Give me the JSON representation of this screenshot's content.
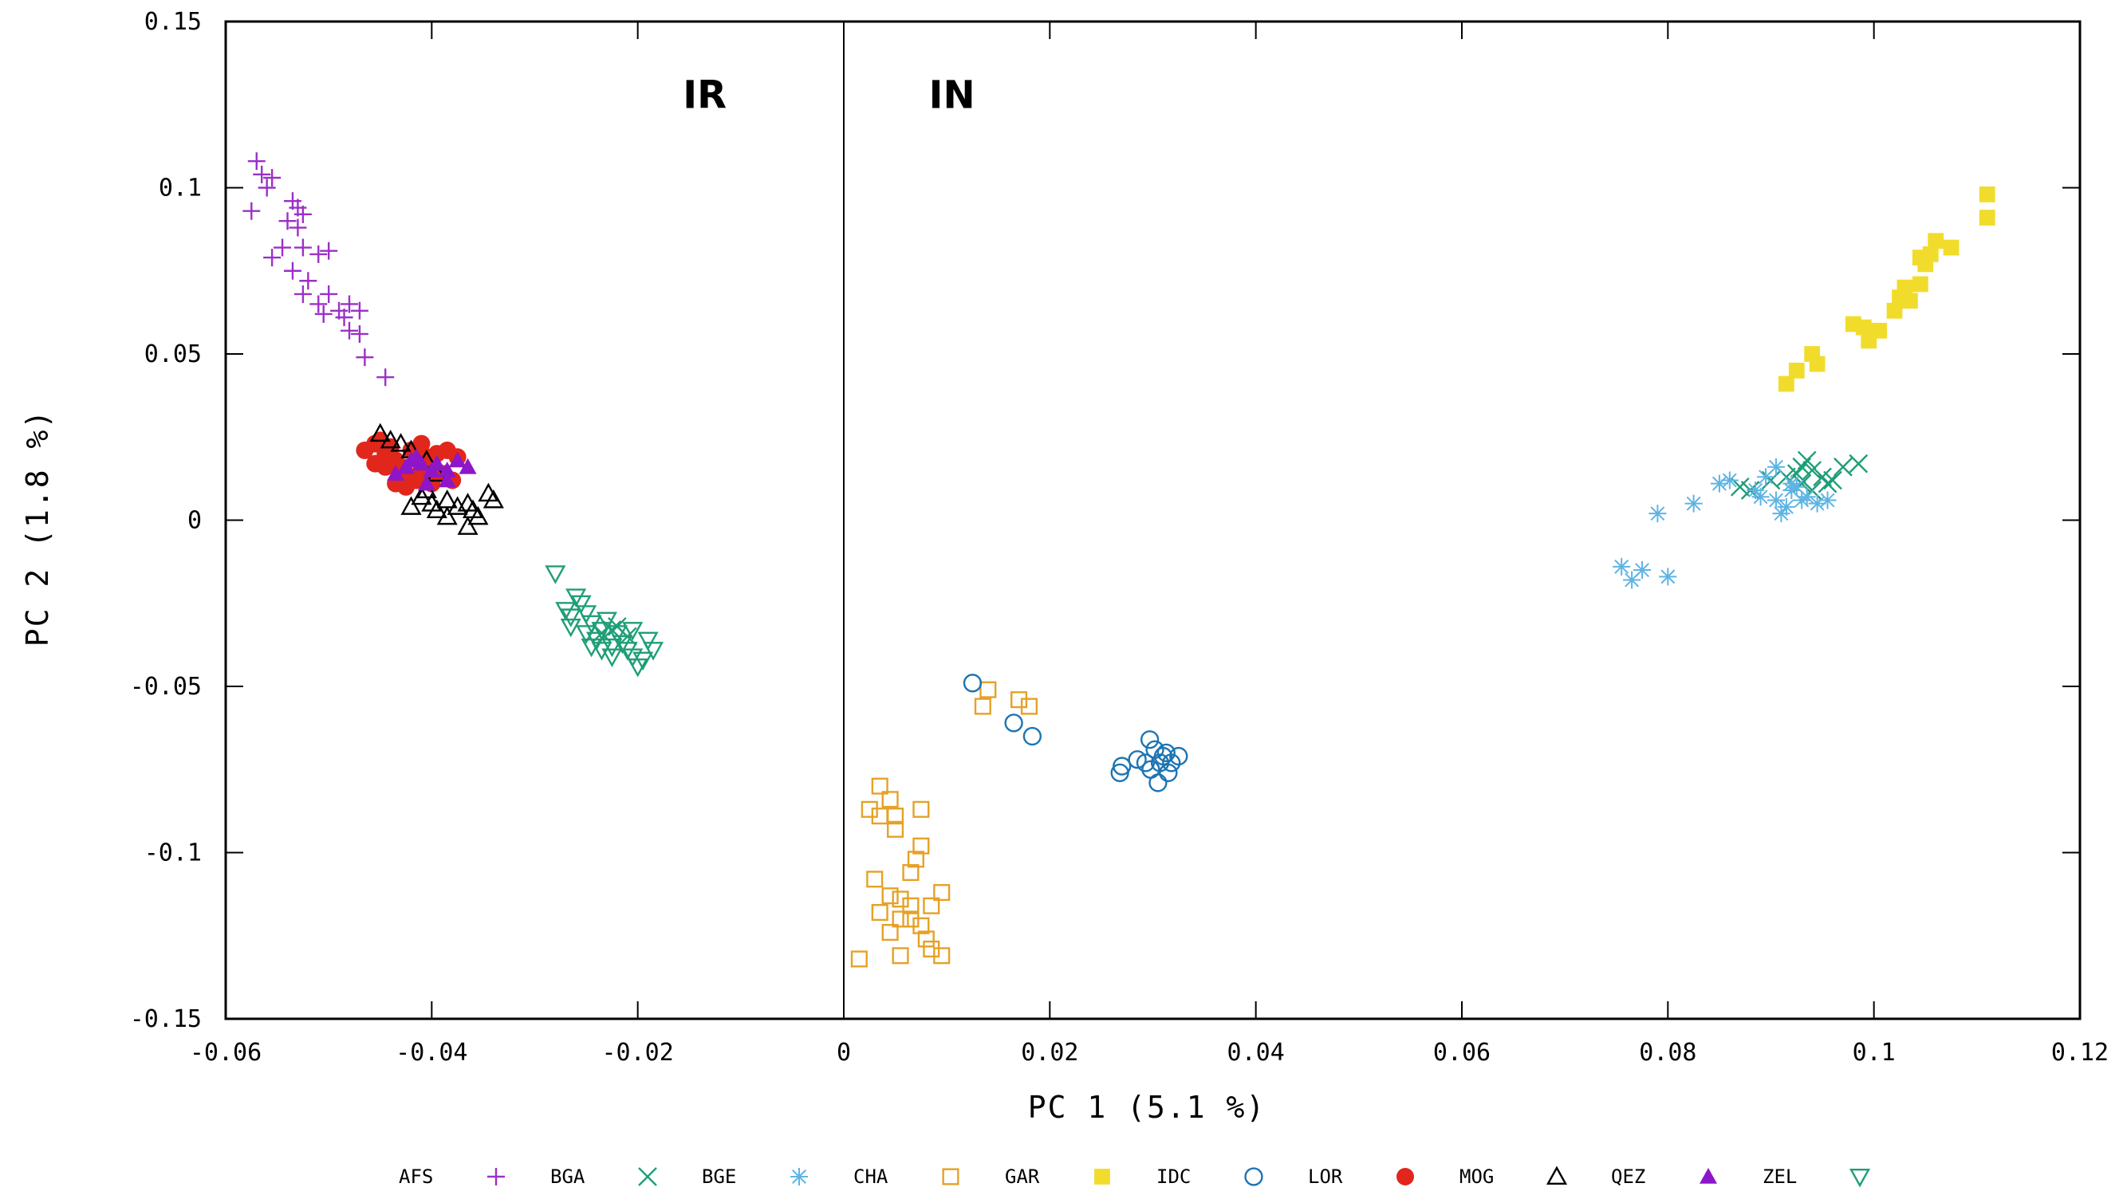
{
  "chart_data": {
    "type": "scatter",
    "xlabel": "PC 1 (5.1 %)",
    "ylabel": "PC 2 (1.8 %)",
    "xlim": [
      -0.06,
      0.12
    ],
    "ylim": [
      -0.15,
      0.15
    ],
    "xticks": [
      -0.06,
      -0.04,
      -0.02,
      0,
      0.02,
      0.04,
      0.06,
      0.08,
      0.1,
      0.12
    ],
    "xtick_labels": [
      "-0.06",
      "-0.04",
      "-0.02",
      "0",
      "0.02",
      "0.04",
      "0.06",
      "0.08",
      "0.1",
      "0.12"
    ],
    "yticks": [
      0.15,
      0.1,
      0.05,
      0,
      -0.05,
      -0.1,
      -0.15
    ],
    "ytick_labels": [
      "0.15",
      "0.1",
      "0.05",
      "0",
      "-0.05",
      "-0.1",
      "-0.15"
    ],
    "grid": false,
    "legend_position": "bottom",
    "annotations": [
      {
        "text": "IR",
        "x": -0.0135,
        "y": 0.124
      },
      {
        "text": "IN",
        "x": 0.0105,
        "y": 0.124
      }
    ],
    "reference_lines": [
      {
        "orientation": "vertical",
        "x": 0
      }
    ],
    "series": [
      {
        "name": "AFS",
        "marker": "plus",
        "color": "#9b30c8",
        "points": [
          [
            -0.057,
            0.108
          ],
          [
            -0.0565,
            0.104
          ],
          [
            -0.056,
            0.1
          ],
          [
            -0.0555,
            0.103
          ],
          [
            -0.0575,
            0.093
          ],
          [
            -0.0535,
            0.096
          ],
          [
            -0.053,
            0.094
          ],
          [
            -0.0525,
            0.092
          ],
          [
            -0.054,
            0.09
          ],
          [
            -0.053,
            0.088
          ],
          [
            -0.0545,
            0.082
          ],
          [
            -0.0525,
            0.082
          ],
          [
            -0.051,
            0.08
          ],
          [
            -0.05,
            0.081
          ],
          [
            -0.0555,
            0.079
          ],
          [
            -0.0535,
            0.075
          ],
          [
            -0.052,
            0.072
          ],
          [
            -0.05,
            0.068
          ],
          [
            -0.0525,
            0.068
          ],
          [
            -0.051,
            0.065
          ],
          [
            -0.0505,
            0.062
          ],
          [
            -0.049,
            0.063
          ],
          [
            -0.048,
            0.065
          ],
          [
            -0.047,
            0.063
          ],
          [
            -0.0485,
            0.061
          ],
          [
            -0.048,
            0.057
          ],
          [
            -0.047,
            0.056
          ],
          [
            -0.0465,
            0.049
          ],
          [
            -0.0445,
            0.043
          ]
        ]
      },
      {
        "name": "BGA",
        "marker": "x",
        "color": "#1f9e78",
        "points": [
          [
            -0.0235,
            -0.034
          ],
          [
            -0.0225,
            -0.033
          ],
          [
            -0.022,
            -0.032
          ],
          [
            -0.021,
            -0.035
          ],
          [
            0.087,
            0.01
          ],
          [
            0.088,
            0.009
          ],
          [
            0.09,
            0.012
          ],
          [
            0.0915,
            0.013
          ],
          [
            0.093,
            0.011
          ],
          [
            0.094,
            0.015
          ],
          [
            0.0935,
            0.018
          ],
          [
            0.095,
            0.013
          ],
          [
            0.096,
            0.012
          ],
          [
            0.097,
            0.016
          ],
          [
            0.0985,
            0.017
          ],
          [
            0.0925,
            0.014
          ],
          [
            0.094,
            0.009
          ],
          [
            0.0955,
            0.011
          ],
          [
            0.093,
            0.016
          ]
        ]
      },
      {
        "name": "BGE",
        "marker": "asterisk",
        "color": "#5db4e4",
        "points": [
          [
            0.0755,
            -0.014
          ],
          [
            0.0765,
            -0.018
          ],
          [
            0.0775,
            -0.015
          ],
          [
            0.08,
            -0.017
          ],
          [
            0.079,
            0.002
          ],
          [
            0.0825,
            0.005
          ],
          [
            0.085,
            0.011
          ],
          [
            0.086,
            0.012
          ],
          [
            0.0885,
            0.009
          ],
          [
            0.089,
            0.007
          ],
          [
            0.0905,
            0.006
          ],
          [
            0.0915,
            0.004
          ],
          [
            0.0905,
            0.016
          ],
          [
            0.092,
            0.009
          ],
          [
            0.0935,
            0.007
          ],
          [
            0.0945,
            0.005
          ],
          [
            0.0955,
            0.006
          ],
          [
            0.091,
            0.002
          ],
          [
            0.0895,
            0.013
          ],
          [
            0.092,
            0.011
          ],
          [
            0.093,
            0.006
          ],
          [
            0.0925,
            0.01
          ]
        ]
      },
      {
        "name": "CHA",
        "marker": "square",
        "color": "#e6a126",
        "points": [
          [
            0.0035,
            -0.08
          ],
          [
            0.0045,
            -0.084
          ],
          [
            0.0025,
            -0.087
          ],
          [
            0.0035,
            -0.089
          ],
          [
            0.005,
            -0.089
          ],
          [
            0.0075,
            -0.087
          ],
          [
            0.005,
            -0.093
          ],
          [
            0.0075,
            -0.098
          ],
          [
            0.007,
            -0.102
          ],
          [
            0.0065,
            -0.106
          ],
          [
            0.003,
            -0.108
          ],
          [
            0.0045,
            -0.113
          ],
          [
            0.0055,
            -0.114
          ],
          [
            0.0065,
            -0.116
          ],
          [
            0.0095,
            -0.112
          ],
          [
            0.0085,
            -0.116
          ],
          [
            0.0035,
            -0.118
          ],
          [
            0.0055,
            -0.12
          ],
          [
            0.0065,
            -0.12
          ],
          [
            0.0075,
            -0.122
          ],
          [
            0.0045,
            -0.124
          ],
          [
            0.008,
            -0.126
          ],
          [
            0.0085,
            -0.129
          ],
          [
            0.0095,
            -0.131
          ],
          [
            0.0055,
            -0.131
          ],
          [
            0.0015,
            -0.132
          ],
          [
            0.0135,
            -0.056
          ],
          [
            0.014,
            -0.051
          ],
          [
            0.017,
            -0.054
          ],
          [
            0.018,
            -0.056
          ]
        ]
      },
      {
        "name": "GAR",
        "marker": "square-filled",
        "color": "#f1dc2c",
        "points": [
          [
            0.111,
            0.098
          ],
          [
            0.111,
            0.091
          ],
          [
            0.1075,
            0.082
          ],
          [
            0.106,
            0.084
          ],
          [
            0.1045,
            0.079
          ],
          [
            0.105,
            0.077
          ],
          [
            0.1045,
            0.071
          ],
          [
            0.103,
            0.07
          ],
          [
            0.1025,
            0.067
          ],
          [
            0.102,
            0.063
          ],
          [
            0.1005,
            0.057
          ],
          [
            0.099,
            0.058
          ],
          [
            0.098,
            0.059
          ],
          [
            0.0995,
            0.054
          ],
          [
            0.094,
            0.05
          ],
          [
            0.0945,
            0.047
          ],
          [
            0.0925,
            0.045
          ],
          [
            0.0915,
            0.041
          ],
          [
            0.1035,
            0.066
          ],
          [
            0.1055,
            0.08
          ]
        ]
      },
      {
        "name": "IDC",
        "marker": "circle",
        "color": "#1c74b3",
        "points": [
          [
            0.0125,
            -0.049
          ],
          [
            0.0165,
            -0.061
          ],
          [
            0.0183,
            -0.065
          ],
          [
            0.0297,
            -0.066
          ],
          [
            0.0302,
            -0.069
          ],
          [
            0.0313,
            -0.07
          ],
          [
            0.0325,
            -0.071
          ],
          [
            0.0318,
            -0.073
          ],
          [
            0.0307,
            -0.073
          ],
          [
            0.0293,
            -0.073
          ],
          [
            0.0285,
            -0.072
          ],
          [
            0.027,
            -0.074
          ],
          [
            0.0268,
            -0.076
          ],
          [
            0.0315,
            -0.076
          ],
          [
            0.0305,
            -0.079
          ],
          [
            0.0298,
            -0.075
          ],
          [
            0.031,
            -0.071
          ]
        ]
      },
      {
        "name": "LOR",
        "marker": "circle-filled",
        "color": "#e1261c",
        "points": [
          [
            -0.0465,
            0.021
          ],
          [
            -0.0455,
            0.023
          ],
          [
            -0.045,
            0.024
          ],
          [
            -0.0445,
            0.02
          ],
          [
            -0.044,
            0.022
          ],
          [
            -0.0435,
            0.018
          ],
          [
            -0.043,
            0.016
          ],
          [
            -0.0425,
            0.014
          ],
          [
            -0.042,
            0.021
          ],
          [
            -0.041,
            0.023
          ],
          [
            -0.0405,
            0.019
          ],
          [
            -0.04,
            0.017
          ],
          [
            -0.0395,
            0.02
          ],
          [
            -0.0385,
            0.021
          ],
          [
            -0.0375,
            0.019
          ],
          [
            -0.039,
            0.014
          ],
          [
            -0.038,
            0.012
          ],
          [
            -0.0415,
            0.012
          ],
          [
            -0.0425,
            0.01
          ],
          [
            -0.0435,
            0.011
          ],
          [
            -0.0445,
            0.016
          ],
          [
            -0.0455,
            0.017
          ],
          [
            -0.041,
            0.015
          ],
          [
            -0.04,
            0.011
          ]
        ]
      },
      {
        "name": "MOG",
        "marker": "triangle",
        "color": "#000000",
        "points": [
          [
            -0.045,
            0.026
          ],
          [
            -0.044,
            0.024
          ],
          [
            -0.043,
            0.023
          ],
          [
            -0.042,
            0.021
          ],
          [
            -0.0405,
            0.018
          ],
          [
            -0.0395,
            0.014
          ],
          [
            -0.041,
            0.007
          ],
          [
            -0.04,
            0.005
          ],
          [
            -0.0385,
            0.006
          ],
          [
            -0.0375,
            0.004
          ],
          [
            -0.0365,
            0.005
          ],
          [
            -0.036,
            0.003
          ],
          [
            -0.0355,
            0.001
          ],
          [
            -0.0365,
            -0.002
          ],
          [
            -0.0345,
            0.008
          ],
          [
            -0.034,
            0.006
          ],
          [
            -0.0385,
            0.001
          ],
          [
            -0.0395,
            0.003
          ],
          [
            -0.042,
            0.004
          ],
          [
            -0.0405,
            0.009
          ]
        ]
      },
      {
        "name": "QEZ",
        "marker": "triangle-filled",
        "color": "#8e16c9",
        "points": [
          [
            -0.0425,
            0.016
          ],
          [
            -0.0415,
            0.019
          ],
          [
            -0.041,
            0.017
          ],
          [
            -0.04,
            0.015
          ],
          [
            -0.0395,
            0.017
          ],
          [
            -0.0385,
            0.015
          ],
          [
            -0.0375,
            0.018
          ],
          [
            -0.0405,
            0.011
          ],
          [
            -0.0385,
            0.012
          ],
          [
            -0.0435,
            0.014
          ],
          [
            -0.042,
            0.018
          ],
          [
            -0.0365,
            0.016
          ]
        ]
      },
      {
        "name": "ZEL",
        "marker": "triangle-down",
        "color": "#1f9e78",
        "points": [
          [
            -0.028,
            -0.016
          ],
          [
            -0.026,
            -0.023
          ],
          [
            -0.0255,
            -0.025
          ],
          [
            -0.027,
            -0.027
          ],
          [
            -0.0265,
            -0.029
          ],
          [
            -0.025,
            -0.028
          ],
          [
            -0.0245,
            -0.031
          ],
          [
            -0.0235,
            -0.033
          ],
          [
            -0.024,
            -0.036
          ],
          [
            -0.0225,
            -0.038
          ],
          [
            -0.0215,
            -0.037
          ],
          [
            -0.021,
            -0.039
          ],
          [
            -0.0205,
            -0.041
          ],
          [
            -0.02,
            -0.044
          ],
          [
            -0.019,
            -0.036
          ],
          [
            -0.0185,
            -0.039
          ],
          [
            -0.0195,
            -0.042
          ],
          [
            -0.0225,
            -0.041
          ],
          [
            -0.0235,
            -0.039
          ],
          [
            -0.0245,
            -0.038
          ],
          [
            -0.022,
            -0.034
          ],
          [
            -0.0205,
            -0.033
          ],
          [
            -0.023,
            -0.03
          ],
          [
            -0.025,
            -0.034
          ],
          [
            -0.0265,
            -0.032
          ]
        ]
      }
    ]
  }
}
